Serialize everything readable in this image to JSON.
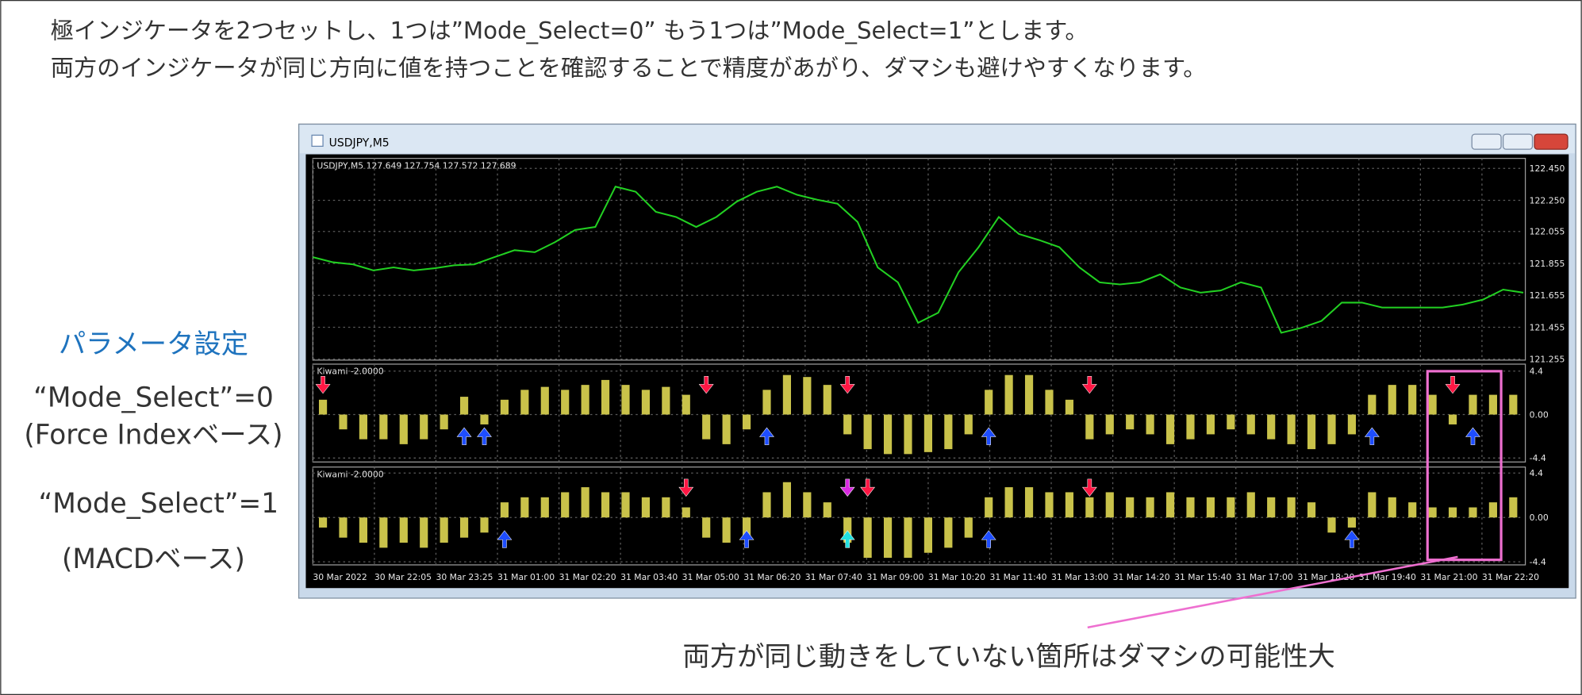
{
  "header": {
    "lines": [
      "極インジケータを2つセットし、1つは”Mode_Select=0” もう1つは”Mode_Select=1”とします。",
      "両方のインジケータが同じ方向に値を持つことを確認することで精度があがり、ダマシも避けやすくなります。"
    ]
  },
  "sidebar": {
    "heading": "パラメータ設定",
    "items": [
      "“Mode_Select”=0",
      "(Force Indexベース)",
      "“Mode_Select”=1",
      "(MACDベース)"
    ]
  },
  "window": {
    "title": "USDJPY,M5"
  },
  "chart_data": [
    {
      "type": "line",
      "title": "USDJPY,M5  127.649 127.754 127.572 127.689",
      "color": "#22d022",
      "grid": true,
      "ylim": [
        121.249,
        122.513
      ],
      "yticks": [
        {
          "value": 122.45,
          "label": "122.450"
        },
        {
          "value": 122.25,
          "label": "122.250"
        },
        {
          "value": 122.055,
          "label": "122.055"
        },
        {
          "value": 121.855,
          "label": "121.855"
        },
        {
          "value": 121.655,
          "label": "121.655"
        },
        {
          "value": 121.455,
          "label": "121.455"
        },
        {
          "value": 121.255,
          "label": "121.255"
        }
      ],
      "values": [
        121.894,
        121.862,
        121.849,
        121.811,
        121.83,
        121.811,
        121.824,
        121.843,
        121.849,
        121.894,
        121.938,
        121.925,
        121.988,
        122.064,
        122.083,
        122.336,
        122.304,
        122.178,
        122.146,
        122.083,
        122.146,
        122.241,
        122.304,
        122.336,
        122.285,
        122.254,
        122.229,
        122.115,
        121.83,
        121.736,
        121.483,
        121.546,
        121.799,
        121.957,
        122.146,
        122.039,
        122.001,
        121.957,
        121.83,
        121.736,
        121.723,
        121.736,
        121.786,
        121.704,
        121.672,
        121.685,
        121.736,
        121.704,
        121.42,
        121.451,
        121.495,
        121.609,
        121.609,
        121.578,
        121.578,
        121.578,
        121.578,
        121.597,
        121.628,
        121.691,
        121.672
      ]
    },
    {
      "type": "bar",
      "title": "Kiwami -2.0000",
      "color": "#c9c24a",
      "grid": true,
      "ylim": [
        -4.8,
        5.1
      ],
      "yticks": [
        4.4,
        {
          "value": 0,
          "label": "0.00"
        },
        -4.4
      ],
      "values": [
        1.5,
        -1.5,
        -2.5,
        -2.5,
        -3,
        -2.5,
        -1.5,
        1.8,
        -1,
        1.5,
        2.5,
        2.8,
        2.5,
        3,
        3.5,
        3,
        2.5,
        2.8,
        2,
        -2.5,
        -3,
        -1.5,
        2.5,
        4,
        3.8,
        3,
        -2,
        -3.5,
        -4,
        -4,
        -3.8,
        -3.5,
        -2,
        2.5,
        4,
        4,
        2.5,
        1.5,
        -2.5,
        -2,
        -1.5,
        -2,
        -3,
        -2.5,
        -2,
        -1.5,
        -2,
        -2.5,
        -3,
        -3.5,
        -3,
        -2,
        2,
        3,
        3,
        2,
        -1,
        2,
        2,
        2
      ],
      "signals": [
        {
          "direction": "down",
          "color": "#ff1744",
          "bars": [
            0,
            19,
            26,
            38,
            56
          ]
        },
        {
          "direction": "up",
          "color": "#1e4dff",
          "bars": [
            7,
            8,
            22,
            33,
            52,
            57
          ]
        }
      ]
    },
    {
      "type": "bar",
      "title": "Kiwami -2.0000",
      "color": "#c9c24a",
      "grid": true,
      "ylim": [
        -4.7,
        5.0
      ],
      "yticks": [
        4.4,
        {
          "value": 0,
          "label": "0.00"
        },
        -4.4
      ],
      "values": [
        -1,
        -2,
        -2.5,
        -3,
        -2.5,
        -3,
        -2.5,
        -2,
        -1.5,
        1.5,
        2,
        2,
        2.5,
        3,
        2.5,
        2.5,
        2,
        2,
        1,
        -2,
        -2.5,
        -2,
        2.5,
        3.5,
        2.5,
        1.5,
        -2.5,
        -4,
        -4,
        -4,
        -3.5,
        -3,
        -2,
        2,
        3,
        3,
        2.5,
        2.5,
        2,
        2.5,
        2,
        2,
        2.5,
        2,
        2,
        2,
        2.5,
        2,
        2,
        1.5,
        -1.5,
        -1,
        2.5,
        2,
        1.5,
        1,
        1,
        1,
        1.5,
        2
      ],
      "signals": [
        {
          "direction": "down",
          "color": "#ff1744",
          "bars": [
            18,
            27,
            38
          ]
        },
        {
          "direction": "down",
          "color": "#d82ae0",
          "bars": [
            26
          ]
        },
        {
          "direction": "up",
          "color": "#1e4dff",
          "bars": [
            9,
            21,
            33,
            51
          ]
        },
        {
          "direction": "up",
          "color": "#22e0e0",
          "bars": [
            26
          ]
        }
      ]
    }
  ],
  "time_axis": {
    "labels": [
      "30 Mar 2022",
      "30 Mar 22:05",
      "30 Mar 23:25",
      "31 Mar 01:00",
      "31 Mar 02:20",
      "31 Mar 03:40",
      "31 Mar 05:00",
      "31 Mar 06:20",
      "31 Mar 07:40",
      "31 Mar 09:00",
      "31 Mar 10:20",
      "31 Mar 11:40",
      "31 Mar 13:00",
      "31 Mar 14:20",
      "31 Mar 15:40",
      "31 Mar 17:00",
      "31 Mar 18:20",
      "31 Mar 19:40",
      "31 Mar 21:00",
      "31 Mar 22:20"
    ]
  },
  "annotation": "両方が同じ動きをしていない箇所はダマシの可能性大"
}
